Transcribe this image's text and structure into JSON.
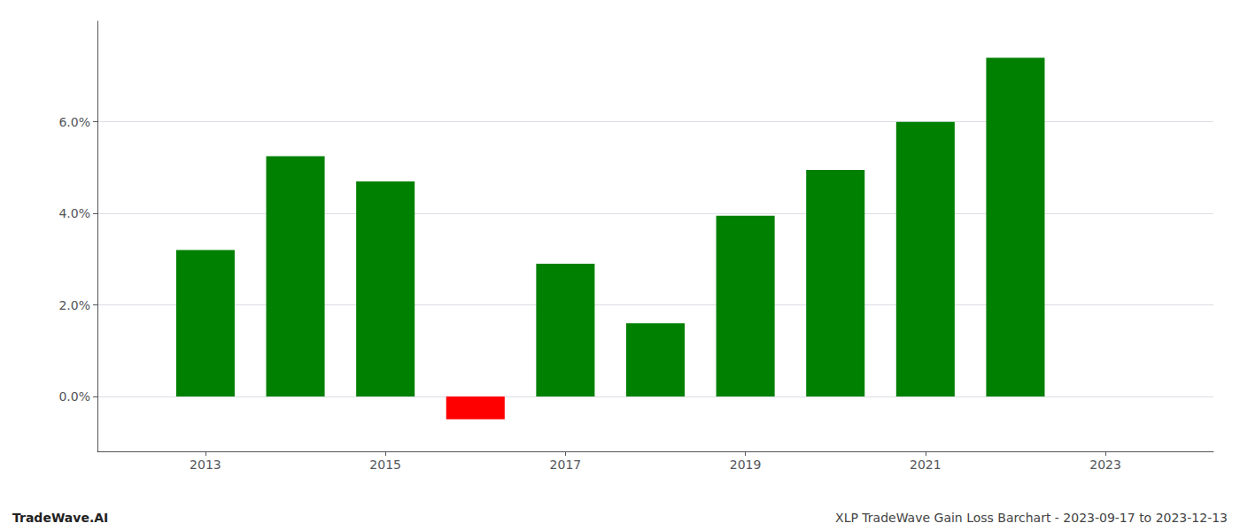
{
  "chart_data": {
    "type": "bar",
    "x": [
      2013,
      2014,
      2015,
      2016,
      2017,
      2018,
      2019,
      2020,
      2021,
      2022
    ],
    "values": [
      0.032,
      0.0525,
      0.047,
      -0.005,
      0.029,
      0.016,
      0.0395,
      0.0495,
      0.06,
      0.074
    ],
    "colors": [
      "#008000",
      "#008000",
      "#008000",
      "#ff0000",
      "#008000",
      "#008000",
      "#008000",
      "#008000",
      "#008000",
      "#008000"
    ],
    "xlim": [
      2011.8,
      2024.2
    ],
    "ylim": [
      -0.012,
      0.082
    ],
    "xticks": [
      2013,
      2015,
      2017,
      2019,
      2021,
      2023
    ],
    "yticks": [
      {
        "value": 0.0,
        "label": "0.0%"
      },
      {
        "value": 0.02,
        "label": "2.0%"
      },
      {
        "value": 0.04,
        "label": "4.0%"
      },
      {
        "value": 0.06,
        "label": "6.0%"
      }
    ],
    "grid": true,
    "annotations": [
      "TradeWave.AI",
      "XLP TradeWave Gain Loss Barchart - 2023-09-17 to 2023-12-13"
    ]
  }
}
